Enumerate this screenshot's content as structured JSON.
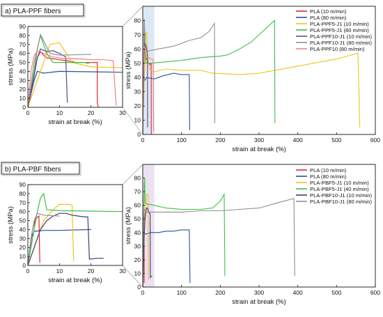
{
  "panels": [
    {
      "label": "a) PLA-PPF fibers",
      "chart_data": {
        "type": "line",
        "xlabel": "strain at break (%)",
        "ylabel": "stress (MPa)",
        "xlim": [
          0,
          600
        ],
        "ylim": [
          0,
          90
        ],
        "xticks": [
          0,
          100,
          200,
          300,
          400,
          500,
          600
        ],
        "yticks": [
          0,
          10,
          20,
          30,
          40,
          50,
          60,
          70,
          80
        ],
        "highlight_range": [
          0,
          30
        ],
        "legend_position": "top-right",
        "series": [
          {
            "name": "PLA (10 m/min)",
            "color": "#e8252b",
            "points": [
              [
                0,
                0
              ],
              [
                2,
                40
              ],
              [
                3,
                55
              ],
              [
                4,
                62
              ],
              [
                5,
                58
              ],
              [
                6,
                55
              ],
              [
                8,
                54
              ],
              [
                10,
                53
              ],
              [
                12,
                52
              ],
              [
                14,
                51
              ],
              [
                15,
                50
              ],
              [
                16,
                50
              ],
              [
                17,
                50
              ],
              [
                18,
                50
              ],
              [
                19,
                49
              ],
              [
                20,
                50
              ],
              [
                21,
                50
              ],
              [
                22,
                50
              ],
              [
                22,
                5
              ],
              [
                22.3,
                0
              ]
            ]
          },
          {
            "name": "PLA (80 m/min)",
            "color": "#2a4f9a",
            "points": [
              [
                0,
                0
              ],
              [
                2,
                30
              ],
              [
                3,
                40
              ],
              [
                5,
                38
              ],
              [
                10,
                40
              ],
              [
                30,
                39
              ],
              [
                50,
                41
              ],
              [
                80,
                43
              ],
              [
                100,
                42
              ],
              [
                120,
                42
              ],
              [
                121,
                3
              ]
            ]
          },
          {
            "name": "PLA-PPF5-J1 (10 m/min)",
            "color": "#f2c21b",
            "points": [
              [
                0,
                0
              ],
              [
                4,
                40
              ],
              [
                7,
                70
              ],
              [
                10,
                72
              ],
              [
                14,
                50
              ],
              [
                20,
                45
              ],
              [
                30,
                44
              ],
              [
                60,
                46
              ],
              [
                100,
                45
              ],
              [
                150,
                45
              ],
              [
                180,
                43
              ],
              [
                250,
                42
              ],
              [
                300,
                43
              ],
              [
                400,
                48
              ],
              [
                500,
                53
              ],
              [
                555,
                57
              ],
              [
                560,
                5
              ]
            ]
          },
          {
            "name": "PLA-PPF5-J1 (80 m/min)",
            "color": "#3cbf48",
            "points": [
              [
                0,
                0
              ],
              [
                2,
                40
              ],
              [
                3,
                65
              ],
              [
                4,
                80
              ],
              [
                6,
                60
              ],
              [
                8,
                50
              ],
              [
                20,
                50
              ],
              [
                60,
                51
              ],
              [
                100,
                52
              ],
              [
                150,
                54
              ],
              [
                200,
                55
              ],
              [
                220,
                56
              ],
              [
                250,
                60
              ],
              [
                280,
                65
              ],
              [
                320,
                75
              ],
              [
                340,
                80
              ],
              [
                341,
                8
              ]
            ]
          },
          {
            "name": "PLA-PPF10-J1 (10 m/min)",
            "color": "#5a4a8a",
            "points": [
              [
                0,
                0
              ],
              [
                2,
                35
              ],
              [
                3,
                55
              ],
              [
                4,
                65
              ],
              [
                6,
                62
              ],
              [
                8,
                63
              ],
              [
                10,
                60
              ],
              [
                11,
                58
              ],
              [
                12,
                56
              ],
              [
                12.5,
                5
              ]
            ]
          },
          {
            "name": "PLA-PPF10-J1 (80 m/min)",
            "color": "#8f8f8f",
            "points": [
              [
                0,
                0
              ],
              [
                2,
                50
              ],
              [
                3,
                65
              ],
              [
                4,
                81
              ],
              [
                5,
                74
              ],
              [
                7,
                60
              ],
              [
                10,
                58
              ],
              [
                20,
                59
              ],
              [
                40,
                60
              ],
              [
                60,
                61
              ],
              [
                80,
                62
              ],
              [
                100,
                64
              ],
              [
                120,
                66
              ],
              [
                150,
                68
              ],
              [
                170,
                72
              ],
              [
                180,
                76
              ],
              [
                185,
                78
              ],
              [
                186,
                8
              ]
            ]
          },
          {
            "name": "PLA-PPF10 (80 m/min)",
            "color": "#f28080",
            "points": [
              [
                0,
                0
              ],
              [
                1,
                40
              ],
              [
                2,
                58
              ],
              [
                3,
                62
              ],
              [
                5,
                60
              ],
              [
                8,
                56
              ],
              [
                12,
                54
              ],
              [
                16,
                54
              ],
              [
                20,
                53
              ],
              [
                24,
                53
              ],
              [
                27,
                52
              ],
              [
                28,
                2
              ]
            ]
          }
        ]
      },
      "inset": {
        "xlim": [
          0,
          30
        ],
        "ylim": [
          0,
          90
        ],
        "xticks": [
          0,
          10,
          20,
          30
        ],
        "yticks": [
          0,
          10,
          20,
          30,
          40,
          50,
          60,
          70,
          80,
          90
        ]
      }
    },
    {
      "label": "b) PLA-PBF fibers",
      "chart_data": {
        "type": "line",
        "xlabel": "strain at break (%)",
        "ylabel": "stress (MPa)",
        "xlim": [
          0,
          600
        ],
        "ylim": [
          0,
          90
        ],
        "xticks": [
          0,
          100,
          200,
          300,
          400,
          500,
          600
        ],
        "yticks": [
          0,
          10,
          20,
          30,
          40,
          50,
          60,
          70,
          80
        ],
        "highlight_range": [
          0,
          30
        ],
        "legend_position": "top-right",
        "series": [
          {
            "name": "PLA (10 m/min)",
            "color": "#e8252b",
            "points": [
              [
                0,
                0
              ],
              [
                1.5,
                40
              ],
              [
                2.5,
                52
              ],
              [
                3.5,
                55
              ],
              [
                3.8,
                3
              ]
            ]
          },
          {
            "name": "PLA (80 m/min)",
            "color": "#2a4f9a",
            "points": [
              [
                0,
                0
              ],
              [
                1,
                30
              ],
              [
                2,
                38
              ],
              [
                5,
                39
              ],
              [
                10,
                39
              ],
              [
                20,
                40
              ],
              [
                40,
                40
              ],
              [
                60,
                41
              ],
              [
                80,
                41
              ],
              [
                100,
                42
              ],
              [
                120,
                42
              ],
              [
                122,
                3
              ]
            ]
          },
          {
            "name": "PLA-PBF5-J1 (10 m/min)",
            "color": "#f2c21b",
            "points": [
              [
                0,
                0
              ],
              [
                3,
                30
              ],
              [
                5,
                50
              ],
              [
                8,
                62
              ],
              [
                10,
                68
              ],
              [
                13,
                68
              ],
              [
                14,
                67
              ],
              [
                14.5,
                5
              ]
            ]
          },
          {
            "name": "PLA-PBF5-J1 (40 m/min)",
            "color": "#3cbf48",
            "points": [
              [
                0,
                0
              ],
              [
                2,
                40
              ],
              [
                3,
                60
              ],
              [
                4,
                75
              ],
              [
                5,
                80
              ],
              [
                6,
                62
              ],
              [
                10,
                61
              ],
              [
                30,
                60
              ],
              [
                60,
                58
              ],
              [
                100,
                57
              ],
              [
                150,
                57
              ],
              [
                180,
                58
              ],
              [
                200,
                63
              ],
              [
                210,
                68
              ],
              [
                212,
                8
              ]
            ]
          },
          {
            "name": "PLA-PBF10-J1 (10 m/min)",
            "color": "#3f3b7a",
            "points": [
              [
                0,
                0
              ],
              [
                2,
                20
              ],
              [
                4,
                40
              ],
              [
                6,
                50
              ],
              [
                8,
                55
              ],
              [
                10,
                58
              ],
              [
                12,
                58
              ],
              [
                14,
                56
              ],
              [
                16,
                55
              ],
              [
                18,
                54
              ],
              [
                19,
                54
              ],
              [
                19.5,
                7
              ],
              [
                22,
                8
              ],
              [
                24,
                8
              ]
            ]
          },
          {
            "name": "PLA-PBF10-J1 (80 m/min)",
            "color": "#8f8f8f",
            "points": [
              [
                0,
                0
              ],
              [
                1,
                30
              ],
              [
                2,
                50
              ],
              [
                3,
                58
              ],
              [
                5,
                56
              ],
              [
                10,
                55
              ],
              [
                50,
                55
              ],
              [
                100,
                55
              ],
              [
                150,
                56
              ],
              [
                200,
                56
              ],
              [
                250,
                57
              ],
              [
                300,
                58
              ],
              [
                350,
                62
              ],
              [
                390,
                65
              ],
              [
                392,
                8
              ]
            ]
          }
        ]
      },
      "inset": {
        "xlim": [
          0,
          30
        ],
        "ylim": [
          0,
          90
        ],
        "xticks": [
          0,
          10,
          20,
          30
        ],
        "yticks": [
          0,
          10,
          20,
          30,
          40,
          50,
          60,
          70,
          80,
          90
        ]
      }
    }
  ]
}
